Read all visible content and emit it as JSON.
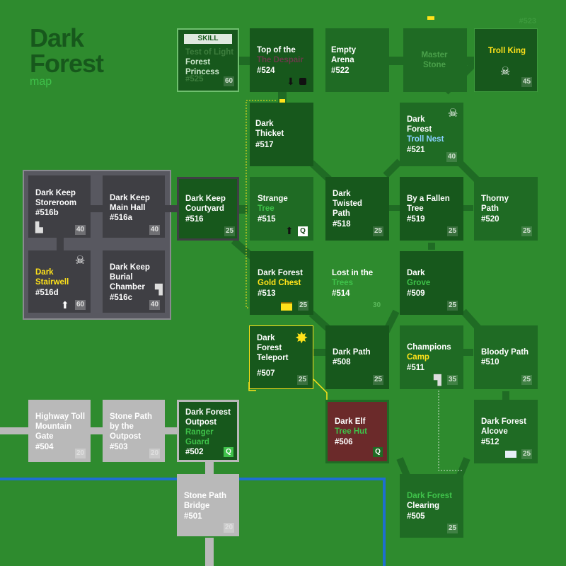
{
  "title": {
    "line1": "Dark",
    "line2": "Forest",
    "sub": "map"
  },
  "corner_id": "#523",
  "rooms": {
    "r525": {
      "skill": "SKILL",
      "name": "Test of Light",
      "sub": "Forest Princess",
      "id": "#525",
      "lv": "60"
    },
    "r524": {
      "name1": "Top of the",
      "name2": "The Despair",
      "id": "#524"
    },
    "r522": {
      "name": "Empty Arena",
      "id": "#522"
    },
    "master": {
      "name": "Master Stone"
    },
    "troll_king": {
      "name": "Troll King",
      "lv": "45"
    },
    "r521": {
      "name": "Dark Forest",
      "sub": "Troll Nest",
      "id": "#521",
      "lv": "40"
    },
    "r517": {
      "name": "Dark Thicket",
      "id": "#517"
    },
    "r515": {
      "name": "Strange",
      "sub": "Tree",
      "id": "#515",
      "q": "Q"
    },
    "r518": {
      "name": "Dark Twisted Path",
      "id": "#518",
      "lv": "25"
    },
    "r519": {
      "name": "By a Fallen Tree",
      "id": "#519",
      "lv": "25"
    },
    "r520": {
      "name": "Thorny Path",
      "id": "#520",
      "lv": "25"
    },
    "r516": {
      "name": "Dark Keep Courtyard",
      "id": "#516",
      "lv": "25"
    },
    "r516b": {
      "name": "Dark Keep Storeroom",
      "id": "#516b",
      "lv": "40"
    },
    "r516a": {
      "name": "Dark Keep Main Hall",
      "id": "#516a",
      "lv": "40"
    },
    "r516d": {
      "name": "Dark",
      "sub": "Stairwell",
      "id": "#516d",
      "lv": "60"
    },
    "r516c": {
      "name": "Dark Keep Burial Chamber",
      "id": "#516c",
      "lv": "40"
    },
    "r513": {
      "name": "Dark Forest",
      "sub": "Gold Chest",
      "id": "#513",
      "lv": "25"
    },
    "r514": {
      "name": "Lost in the",
      "sub": "Trees",
      "id": "#514",
      "lv": "30"
    },
    "r509": {
      "name": "Dark",
      "sub": "Grove",
      "id": "#509",
      "lv": "25"
    },
    "r507": {
      "name": "Dark Forest Teleport",
      "id": "#507",
      "lv": "25"
    },
    "r508": {
      "name": "Dark Path",
      "id": "#508",
      "lv": "25"
    },
    "r511": {
      "name": "Champions",
      "sub": "Camp",
      "id": "#511",
      "lv": "35"
    },
    "r510": {
      "name": "Bloody Path",
      "id": "#510",
      "lv": "25"
    },
    "r506": {
      "name": "Dark Elf",
      "sub": "Tree Hut",
      "id": "#506",
      "q": "Q"
    },
    "r512": {
      "name": "Dark Forest Alcove",
      "id": "#512",
      "lv": "25"
    },
    "r505": {
      "name": "Dark Forest",
      "sub": "Clearing",
      "id": "#505",
      "lv": "25"
    },
    "r504": {
      "name": "Highway Toll Mountain Gate",
      "id": "#504",
      "lv": "20"
    },
    "r503": {
      "name": "Stone Path by the Outpost",
      "id": "#503",
      "lv": "20"
    },
    "r502": {
      "name": "Dark Forest Outpost",
      "sub": "Ranger Guard",
      "id": "#502",
      "q": "Q"
    },
    "r501": {
      "name": "Stone Path Bridge",
      "id": "#501",
      "lv": "20"
    }
  },
  "colors": {
    "bg": "#2e8b2e",
    "room": "#1f6b24",
    "title": "#17581c",
    "gold": "#ffe21a",
    "river": "#1e6fd0"
  }
}
